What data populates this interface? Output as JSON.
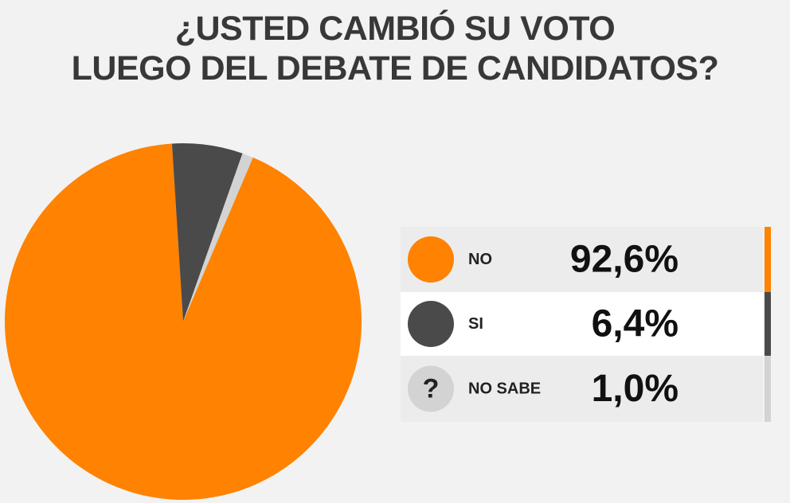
{
  "chart_data": {
    "type": "pie",
    "title": [
      "¿USTED CAMBIÓ SU VOTO",
      "LUEGO DEL DEBATE DE CANDIDATOS?"
    ],
    "categories": [
      "NO",
      "SI",
      "NO SABE"
    ],
    "values": [
      92.6,
      6.4,
      1.0
    ],
    "value_labels": [
      "92,6%",
      "6,4%",
      "1,0%"
    ],
    "colors": [
      "#ff8200",
      "#4a4a4a",
      "#d3d3d3"
    ],
    "legend_icon_text": "?"
  }
}
